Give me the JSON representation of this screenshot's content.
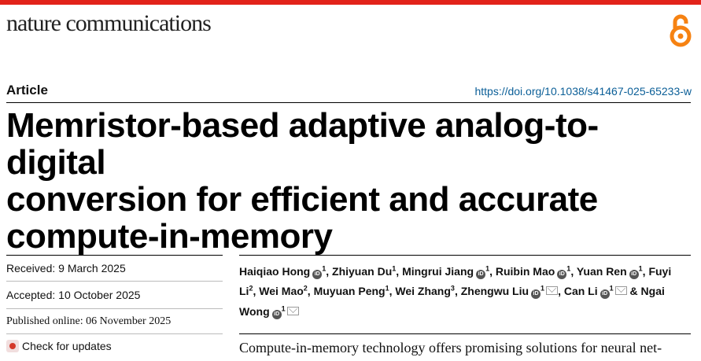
{
  "journal": {
    "name": "nature communications",
    "brand_color": "#e2231a"
  },
  "open_access_icon": "open-access-lock-icon",
  "article_type": "Article",
  "doi": "https://doi.org/10.1038/s41467-025-65233-w",
  "title_lines": [
    "Memristor-based adaptive analog-to-digital",
    "conversion for efficient and accurate",
    "compute-in-memory"
  ],
  "received": "Received: 9 March 2025",
  "accepted": "Accepted: 10 October 2025",
  "published": "Published online: 06 November 2025",
  "check_updates": "Check for updates",
  "authors": [
    {
      "name": "Haiqiao Hong",
      "sup": "1",
      "orcid": true,
      "mail": false,
      "sep": ","
    },
    {
      "name": "Zhiyuan Du",
      "sup": "1",
      "orcid": false,
      "mail": false,
      "sep": ","
    },
    {
      "name": "Mingrui Jiang",
      "sup": "1",
      "orcid": true,
      "mail": false,
      "sep": ","
    },
    {
      "name": "Ruibin Mao",
      "sup": "1",
      "orcid": true,
      "mail": false,
      "sep": ","
    },
    {
      "name": "Yuan Ren",
      "sup": "1",
      "orcid": true,
      "mail": false,
      "sep": ","
    },
    {
      "name": "Fuyi Li",
      "sup": "2",
      "orcid": false,
      "mail": false,
      "sep": ","
    },
    {
      "name": "Wei Mao",
      "sup": "2",
      "orcid": false,
      "mail": false,
      "sep": ","
    },
    {
      "name": "Muyuan Peng",
      "sup": "1",
      "orcid": false,
      "mail": false,
      "sep": ","
    },
    {
      "name": "Wei Zhang",
      "sup": "3",
      "orcid": false,
      "mail": false,
      "sep": ","
    },
    {
      "name": "Zhengwu Liu",
      "sup": "1",
      "orcid": true,
      "mail": true,
      "sep": ","
    },
    {
      "name": "Can Li",
      "sup": "1",
      "orcid": true,
      "mail": true,
      "sep": " &"
    },
    {
      "name": "Ngai Wong",
      "sup": "1",
      "orcid": true,
      "mail": true,
      "sep": ""
    }
  ],
  "abstract_start": "Compute-in-memory technology offers promising solutions for neural net-"
}
